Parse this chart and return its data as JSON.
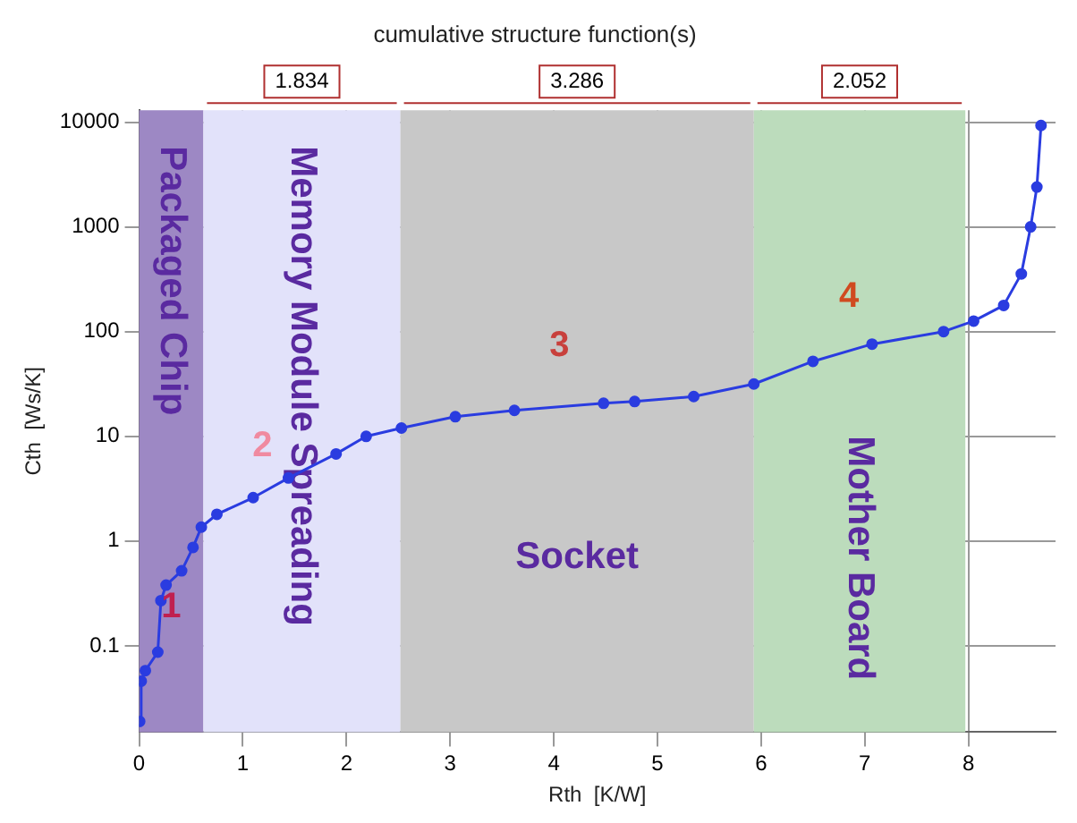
{
  "chart_data": {
    "type": "line",
    "title": "cumulative structure function(s)",
    "xlabel": "Rth  [K/W]",
    "ylabel": "Cth  [Ws/K]",
    "series": [
      {
        "color": "#2a3ce0",
        "x": [
          0.005,
          0.02,
          0.06,
          0.18,
          0.21,
          0.26,
          0.41,
          0.52,
          0.6,
          0.75,
          1.1,
          1.44,
          1.9,
          2.19,
          2.53,
          3.05,
          3.62,
          4.48,
          4.78,
          5.35,
          5.93,
          6.5,
          7.07,
          7.76,
          8.05,
          8.34,
          8.51,
          8.6,
          8.66,
          8.7
        ],
        "values": [
          0.019,
          0.046,
          0.058,
          0.087,
          0.27,
          0.38,
          0.52,
          0.87,
          1.36,
          1.8,
          2.6,
          4.0,
          6.8,
          10,
          12,
          15.4,
          17.7,
          20.7,
          21.5,
          24,
          31.6,
          52,
          76,
          100,
          126,
          178,
          356,
          1000,
          2400,
          9300
        ]
      }
    ],
    "xlim": [
      0,
      8.84
    ],
    "xticks": [
      0,
      1,
      2,
      3,
      4,
      5,
      6,
      7,
      8
    ],
    "ylim": [
      0.015,
      13000
    ],
    "yticks": [
      0.1,
      1,
      10,
      100,
      1000,
      10000
    ],
    "log": "y",
    "grid": true,
    "marker": "circle",
    "line_style": "solid",
    "bands": [
      {
        "axis": "x",
        "from": 0,
        "to": 0.62,
        "label": "Packaged Chip",
        "color": "#9d88c4"
      },
      {
        "axis": "x",
        "from": 0.62,
        "to": 2.52,
        "label": "Memory Module Spreading",
        "color": "#e2e2fa"
      },
      {
        "axis": "x",
        "from": 2.52,
        "to": 5.93,
        "label": "Socket",
        "color": "#c8c8c8"
      },
      {
        "axis": "x",
        "from": 5.93,
        "to": 7.97,
        "label": "Mother Board",
        "color": "#bcdcbc"
      }
    ],
    "annotations": [
      "1.834",
      "3.286",
      "2.052",
      "1",
      "2",
      "3",
      "4"
    ]
  }
}
